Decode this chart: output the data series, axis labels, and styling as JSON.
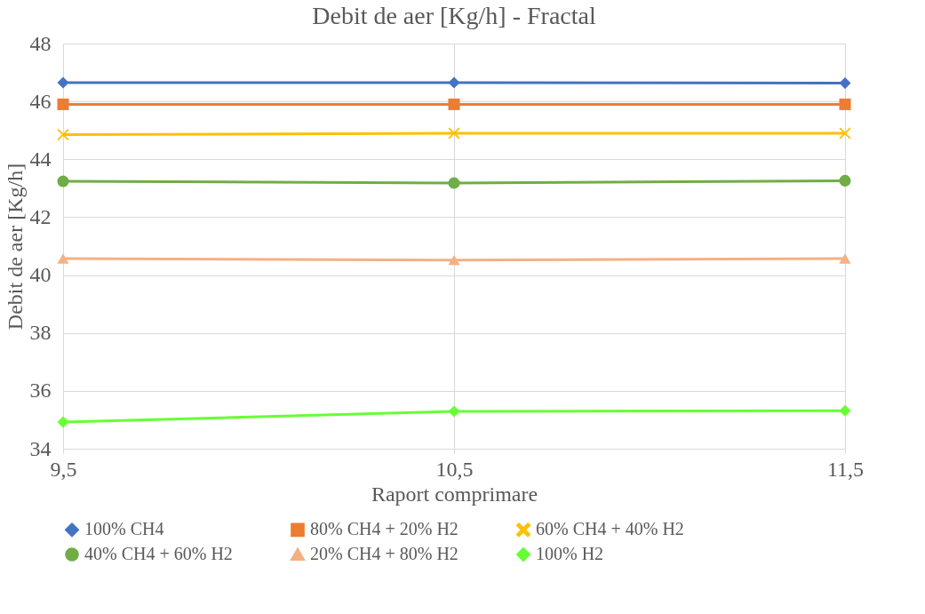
{
  "chart_data": {
    "type": "line",
    "title": "Debit de aer [Kg/h] - Fractal",
    "xlabel": "Raport comprimare",
    "ylabel": "Debit de aer [Kg/h]",
    "x": [
      9.5,
      10.5,
      11.5
    ],
    "xlim": [
      9.5,
      11.5
    ],
    "xticks": [
      {
        "value": 9.5,
        "label": "9,5"
      },
      {
        "value": 10.5,
        "label": "10,5"
      },
      {
        "value": 11.5,
        "label": "11,5"
      }
    ],
    "ylim": [
      34,
      48
    ],
    "yticks": [
      34,
      36,
      38,
      40,
      42,
      44,
      46,
      48
    ],
    "grid": true,
    "legend": "bottom",
    "line_style": "solid",
    "series": [
      {
        "name": "100% CH4",
        "color": "#4472c4",
        "marker": "diamond",
        "values": [
          46.65,
          46.65,
          46.63
        ]
      },
      {
        "name": "80% CH4 + 20% H2",
        "color": "#ed7d31",
        "marker": "square",
        "values": [
          45.9,
          45.9,
          45.9
        ]
      },
      {
        "name": "60% CH4 + 40% H2",
        "color": "#ffc000",
        "marker": "cross",
        "values": [
          44.85,
          44.9,
          44.9
        ]
      },
      {
        "name": "40% CH4 + 60% H2",
        "color": "#70ad47",
        "marker": "circle",
        "values": [
          43.24,
          43.18,
          43.26
        ]
      },
      {
        "name": "20% CH4 + 80% H2",
        "color": "#f4b183",
        "marker": "triangle",
        "values": [
          40.57,
          40.52,
          40.57
        ]
      },
      {
        "name": "100% H2",
        "color": "#66ff33",
        "marker": "diamond",
        "values": [
          34.92,
          35.29,
          35.31
        ]
      }
    ]
  }
}
